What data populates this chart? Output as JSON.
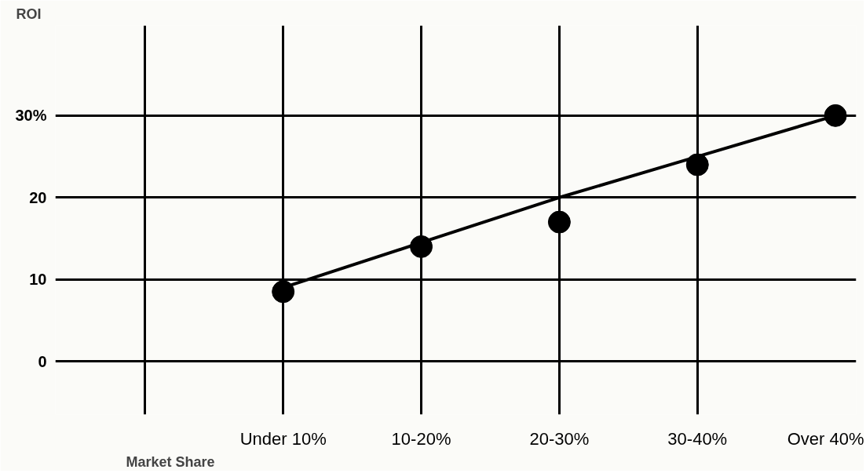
{
  "chart_data": {
    "type": "scatter",
    "ylabel": "ROI",
    "xlabel": "Market Share",
    "categories": [
      "Under 10%",
      "10-20%",
      "20-30%",
      "30-40%",
      "Over 40%"
    ],
    "series": [
      {
        "color": "#000000",
        "marker": "circle",
        "values": [
          8.5,
          14,
          17,
          24,
          30
        ]
      },
      {
        "type": "line",
        "color": "#000000",
        "line_style": "solid",
        "values": [
          9,
          14.5,
          20,
          25,
          30
        ]
      }
    ],
    "ylim": [
      -6.5,
      41
    ],
    "yticks": [
      0,
      10,
      20,
      {
        "value": 30,
        "label": "30%"
      }
    ],
    "grid": true
  }
}
